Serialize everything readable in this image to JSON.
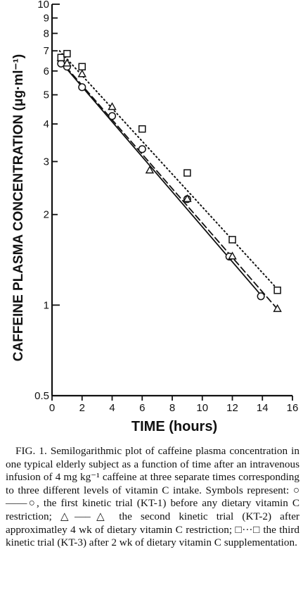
{
  "chart_data": {
    "type": "scatter",
    "title": "",
    "xlabel": "TIME (hours)",
    "ylabel": "CAFFEINE  PLASMA  CONCENTRATION (μg·ml⁻¹)",
    "xlim": [
      0,
      16
    ],
    "ylim": [
      0.5,
      10
    ],
    "y_scale": "log",
    "grid": false,
    "x_ticks": [
      0,
      2,
      4,
      6,
      8,
      10,
      12,
      14,
      16
    ],
    "y_ticks": [
      {
        "value": 0.5,
        "label": "0.5"
      },
      {
        "value": 1,
        "label": "1"
      },
      {
        "value": 2,
        "label": "2"
      },
      {
        "value": 3,
        "label": "3"
      },
      {
        "value": 4,
        "label": "4"
      },
      {
        "value": 5,
        "label": "5"
      },
      {
        "value": 6,
        "label": "6"
      },
      {
        "value": 7,
        "label": "7"
      },
      {
        "value": 8,
        "label": "8"
      },
      {
        "value": 9,
        "label": "9"
      },
      {
        "value": 10,
        "label": "10"
      }
    ],
    "series": [
      {
        "marker": "circle",
        "line_style": "solid",
        "color": "#111111",
        "points": [
          [
            0.6,
            6.35
          ],
          [
            1.0,
            6.2
          ],
          [
            2.0,
            5.3
          ],
          [
            4.0,
            4.25
          ],
          [
            6.0,
            3.3
          ],
          [
            9.0,
            2.25
          ],
          [
            11.8,
            1.45
          ],
          [
            13.9,
            1.07
          ]
        ],
        "fit": [
          [
            0.5,
            6.5
          ],
          [
            13.9,
            1.08
          ]
        ]
      },
      {
        "marker": "triangle",
        "line_style": "dashed",
        "color": "#111111",
        "points": [
          [
            0.6,
            6.6
          ],
          [
            1.0,
            6.35
          ],
          [
            2.0,
            5.85
          ],
          [
            4.0,
            4.55
          ],
          [
            6.5,
            2.8
          ],
          [
            9.0,
            2.25
          ],
          [
            12.0,
            1.45
          ],
          [
            15.0,
            0.97
          ]
        ],
        "fit": [
          [
            0.5,
            6.55
          ],
          [
            15.0,
            0.97
          ]
        ]
      },
      {
        "marker": "square",
        "line_style": "dotted",
        "color": "#111111",
        "points": [
          [
            0.6,
            6.65
          ],
          [
            1.0,
            6.85
          ],
          [
            2.0,
            6.2
          ],
          [
            6.0,
            3.85
          ],
          [
            9.0,
            2.75
          ],
          [
            12.0,
            1.65
          ],
          [
            15.0,
            1.12
          ]
        ],
        "fit": [
          [
            0.5,
            7.0
          ],
          [
            15.0,
            1.13
          ]
        ]
      }
    ]
  },
  "caption": {
    "text": "FIG. 1. Semilogarithmic plot of caffeine plasma concentration in one typical elderly subject as a function of time after an intravenous infusion of 4 mg kg⁻¹ caffeine at three separate times corresponding to three different levels of vitamin C intake. Symbols represent: ○——○, the first kinetic trial (KT-1) before any dietary vitamin C restriction; △–––△ the second kinetic trial (KT-2) after approximatley 4 wk of dietary vitamin C restriction; □···□ the third kinetic trial (KT-3) after 2 wk of dietary vitamin C supplementation."
  }
}
